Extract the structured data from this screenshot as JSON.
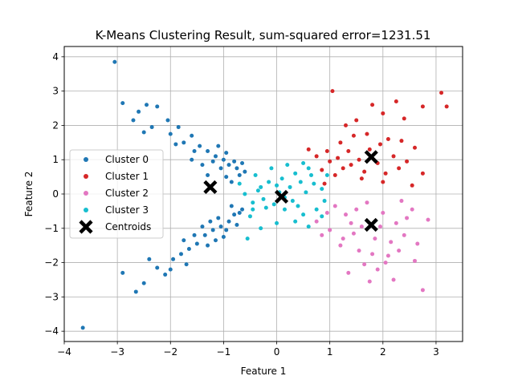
{
  "chart_data": {
    "type": "scatter",
    "title": "K-Means Clustering Result, sum-squared error=1231.51",
    "xlabel": "Feature 1",
    "ylabel": "Feature 2",
    "xlim": [
      -4.0,
      3.5
    ],
    "ylim": [
      -4.3,
      4.3
    ],
    "x_ticks": [
      -4,
      -3,
      -2,
      -1,
      0,
      1,
      2,
      3
    ],
    "x_tick_labels": [
      "−4",
      "−3",
      "−2",
      "−1",
      "0",
      "1",
      "2",
      "3"
    ],
    "y_ticks": [
      -4,
      -3,
      -2,
      -1,
      0,
      1,
      2,
      3,
      4
    ],
    "y_tick_labels": [
      "−4",
      "−3",
      "−2",
      "−1",
      "0",
      "1",
      "2",
      "3",
      "4"
    ],
    "grid": true,
    "legend_position": "center-left",
    "series": [
      {
        "name": "Cluster 0",
        "color": "#1f77b4",
        "marker": "circle",
        "points": [
          [
            -3.05,
            3.85
          ],
          [
            -3.65,
            -3.9
          ],
          [
            -2.9,
            2.65
          ],
          [
            -2.6,
            2.4
          ],
          [
            -2.45,
            2.6
          ],
          [
            -2.25,
            2.55
          ],
          [
            -2.7,
            2.15
          ],
          [
            -2.35,
            1.95
          ],
          [
            -2.05,
            2.15
          ],
          [
            -1.85,
            1.95
          ],
          [
            -1.6,
            1.7
          ],
          [
            -1.45,
            1.4
          ],
          [
            -1.75,
            1.5
          ],
          [
            -1.3,
            1.25
          ],
          [
            -1.15,
            1.1
          ],
          [
            -1.0,
            1.0
          ],
          [
            -0.9,
            0.85
          ],
          [
            -0.8,
            0.95
          ],
          [
            -0.75,
            0.75
          ],
          [
            -0.6,
            0.65
          ],
          [
            -1.05,
            0.75
          ],
          [
            -1.3,
            0.55
          ],
          [
            -0.95,
            0.5
          ],
          [
            -0.85,
            0.35
          ],
          [
            -1.55,
            1.25
          ],
          [
            -2.0,
            1.75
          ],
          [
            -1.9,
            1.45
          ],
          [
            -2.5,
            1.8
          ],
          [
            -1.2,
            0.95
          ],
          [
            -0.7,
            0.55
          ],
          [
            -1.6,
            1.0
          ],
          [
            -1.4,
            0.85
          ],
          [
            -0.65,
            0.9
          ],
          [
            -1.1,
            1.4
          ],
          [
            -0.95,
            1.2
          ],
          [
            -2.65,
            -2.85
          ],
          [
            -2.5,
            -2.6
          ],
          [
            -2.25,
            -2.15
          ],
          [
            -2.1,
            -2.35
          ],
          [
            -1.95,
            -1.9
          ],
          [
            -1.8,
            -1.75
          ],
          [
            -1.65,
            -1.6
          ],
          [
            -1.5,
            -1.45
          ],
          [
            -1.35,
            -1.2
          ],
          [
            -1.2,
            -1.05
          ],
          [
            -1.05,
            -0.95
          ],
          [
            -0.9,
            -0.8
          ],
          [
            -0.8,
            -0.6
          ],
          [
            -0.7,
            -0.55
          ],
          [
            -0.65,
            -0.45
          ],
          [
            -1.15,
            -1.35
          ],
          [
            -1.0,
            -1.25
          ],
          [
            -1.4,
            -0.95
          ],
          [
            -1.55,
            -1.2
          ],
          [
            -1.3,
            -1.5
          ],
          [
            -2.4,
            -1.9
          ],
          [
            -1.7,
            -2.05
          ],
          [
            -0.85,
            -0.35
          ],
          [
            -1.1,
            -0.7
          ],
          [
            -2.9,
            -2.3
          ],
          [
            -1.25,
            -0.8
          ],
          [
            -1.75,
            -1.35
          ],
          [
            -0.95,
            -1.05
          ],
          [
            -2.0,
            -2.2
          ],
          [
            -0.75,
            -0.9
          ]
        ]
      },
      {
        "name": "Cluster 1",
        "color": "#d62728",
        "marker": "circle",
        "points": [
          [
            1.05,
            3.0
          ],
          [
            3.1,
            2.95
          ],
          [
            3.2,
            2.55
          ],
          [
            2.75,
            2.55
          ],
          [
            2.25,
            2.7
          ],
          [
            1.8,
            2.6
          ],
          [
            2.0,
            2.35
          ],
          [
            1.5,
            2.15
          ],
          [
            1.3,
            2.0
          ],
          [
            2.4,
            2.2
          ],
          [
            1.7,
            1.75
          ],
          [
            2.1,
            1.6
          ],
          [
            1.2,
            1.5
          ],
          [
            2.6,
            1.35
          ],
          [
            0.6,
            1.3
          ],
          [
            0.75,
            1.1
          ],
          [
            1.0,
            0.95
          ],
          [
            1.4,
            0.85
          ],
          [
            1.9,
            0.9
          ],
          [
            2.3,
            0.75
          ],
          [
            2.75,
            0.6
          ],
          [
            1.1,
            0.55
          ],
          [
            1.6,
            0.45
          ],
          [
            2.0,
            0.35
          ],
          [
            0.9,
            0.3
          ],
          [
            2.55,
            0.25
          ],
          [
            1.35,
            1.25
          ],
          [
            1.75,
            1.3
          ],
          [
            2.2,
            1.1
          ],
          [
            0.85,
            0.7
          ],
          [
            1.55,
            1.0
          ],
          [
            1.25,
            0.75
          ],
          [
            2.45,
            0.95
          ],
          [
            1.95,
            1.45
          ],
          [
            1.15,
            1.05
          ],
          [
            2.05,
            0.6
          ],
          [
            1.65,
            0.65
          ],
          [
            0.95,
            1.25
          ],
          [
            2.35,
            1.55
          ],
          [
            1.45,
            1.7
          ]
        ]
      },
      {
        "name": "Cluster 2",
        "color": "#e377c2",
        "marker": "circle",
        "points": [
          [
            2.75,
            -2.8
          ],
          [
            1.75,
            -2.55
          ],
          [
            2.2,
            -2.5
          ],
          [
            1.35,
            -2.3
          ],
          [
            1.9,
            -2.2
          ],
          [
            2.6,
            -1.95
          ],
          [
            2.1,
            -1.8
          ],
          [
            1.55,
            -1.65
          ],
          [
            1.2,
            -1.5
          ],
          [
            1.85,
            -1.3
          ],
          [
            2.4,
            -1.2
          ],
          [
            1.0,
            -1.05
          ],
          [
            1.6,
            -0.95
          ],
          [
            2.25,
            -0.85
          ],
          [
            2.85,
            -0.75
          ],
          [
            0.75,
            -0.8
          ],
          [
            1.3,
            -0.6
          ],
          [
            2.0,
            -0.55
          ],
          [
            2.55,
            -0.45
          ],
          [
            1.1,
            -0.35
          ],
          [
            1.7,
            -0.25
          ],
          [
            2.35,
            -0.2
          ],
          [
            0.95,
            -0.55
          ],
          [
            1.45,
            -1.15
          ],
          [
            2.65,
            -1.45
          ],
          [
            1.95,
            -0.95
          ],
          [
            1.25,
            -1.3
          ],
          [
            2.15,
            -1.4
          ],
          [
            1.8,
            -1.75
          ],
          [
            1.5,
            -0.45
          ],
          [
            2.45,
            -0.7
          ],
          [
            0.85,
            -1.2
          ],
          [
            2.05,
            -2.0
          ],
          [
            1.65,
            -2.05
          ],
          [
            1.4,
            -0.85
          ],
          [
            2.3,
            -1.65
          ]
        ]
      },
      {
        "name": "Cluster 3",
        "color": "#17becf",
        "marker": "circle",
        "points": [
          [
            -0.55,
            -1.3
          ],
          [
            -0.3,
            -1.0
          ],
          [
            0.0,
            -0.85
          ],
          [
            0.35,
            -0.8
          ],
          [
            0.6,
            -0.95
          ],
          [
            0.5,
            -0.6
          ],
          [
            0.15,
            -0.45
          ],
          [
            -0.2,
            -0.4
          ],
          [
            -0.45,
            -0.25
          ],
          [
            -0.6,
            0.0
          ],
          [
            -0.35,
            0.1
          ],
          [
            0.05,
            0.05
          ],
          [
            0.25,
            0.2
          ],
          [
            0.45,
            0.35
          ],
          [
            0.7,
            0.3
          ],
          [
            0.85,
            0.15
          ],
          [
            -0.15,
            0.35
          ],
          [
            0.1,
            0.45
          ],
          [
            0.35,
            0.6
          ],
          [
            0.6,
            0.75
          ],
          [
            -0.4,
            0.55
          ],
          [
            -0.1,
            0.75
          ],
          [
            0.2,
            0.85
          ],
          [
            0.9,
            -0.2
          ],
          [
            0.95,
            0.55
          ],
          [
            -0.5,
            -0.65
          ],
          [
            0.3,
            -0.2
          ],
          [
            -0.25,
            -0.15
          ],
          [
            0.55,
            0.05
          ],
          [
            0.0,
            0.25
          ],
          [
            -0.7,
            0.3
          ],
          [
            0.4,
            -0.35
          ],
          [
            0.15,
            -0.1
          ],
          [
            -0.3,
            0.2
          ],
          [
            0.75,
            -0.45
          ],
          [
            0.65,
            0.55
          ],
          [
            -0.05,
            -0.3
          ],
          [
            0.5,
            0.9
          ],
          [
            -0.45,
            -0.45
          ],
          [
            0.85,
            -0.65
          ]
        ]
      },
      {
        "name": "Centroids",
        "color": "#000000",
        "marker": "x",
        "points": [
          [
            -1.25,
            0.2
          ],
          [
            1.78,
            1.08
          ],
          [
            1.78,
            -0.9
          ],
          [
            0.09,
            -0.08
          ]
        ]
      }
    ]
  }
}
